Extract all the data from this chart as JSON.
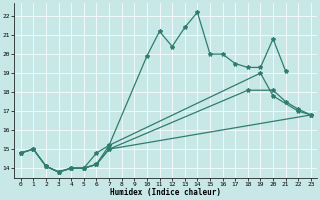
{
  "xlabel": "Humidex (Indice chaleur)",
  "background_color": "#c8e8e8",
  "grid_color": "#ffffff",
  "line_color": "#2e7d6e",
  "xlim": [
    -0.5,
    23.5
  ],
  "ylim": [
    13.5,
    22.7
  ],
  "xticks": [
    0,
    1,
    2,
    3,
    4,
    5,
    6,
    7,
    8,
    9,
    10,
    11,
    12,
    13,
    14,
    15,
    16,
    17,
    18,
    19,
    20,
    21,
    22,
    23
  ],
  "yticks": [
    14,
    15,
    16,
    17,
    18,
    19,
    20,
    21,
    22
  ],
  "series1_x": [
    2,
    3,
    4,
    5,
    6,
    7,
    10,
    11,
    12,
    13,
    14,
    15,
    16,
    17,
    18,
    19,
    20,
    21
  ],
  "series1_y": [
    14.1,
    13.8,
    14.0,
    14.0,
    14.8,
    15.2,
    19.9,
    21.2,
    20.4,
    21.4,
    22.2,
    20.0,
    20.0,
    19.5,
    19.3,
    19.3,
    20.8,
    19.1
  ],
  "series2_x": [
    0,
    1,
    2,
    3,
    4,
    5,
    6,
    7,
    19,
    20,
    22,
    23
  ],
  "series2_y": [
    14.8,
    15.0,
    14.1,
    13.8,
    14.0,
    14.0,
    14.2,
    15.2,
    19.0,
    17.8,
    17.0,
    16.8
  ],
  "series3_x": [
    0,
    1,
    2,
    3,
    4,
    5,
    6,
    7,
    18,
    20,
    21,
    22,
    23
  ],
  "series3_y": [
    14.8,
    15.0,
    14.1,
    13.8,
    14.0,
    14.0,
    14.2,
    15.0,
    18.1,
    18.1,
    17.5,
    17.1,
    16.8
  ],
  "series4_x": [
    0,
    1,
    2,
    3,
    4,
    5,
    6,
    7,
    23
  ],
  "series4_y": [
    14.8,
    15.0,
    14.1,
    13.8,
    14.0,
    14.0,
    14.2,
    15.0,
    16.8
  ]
}
